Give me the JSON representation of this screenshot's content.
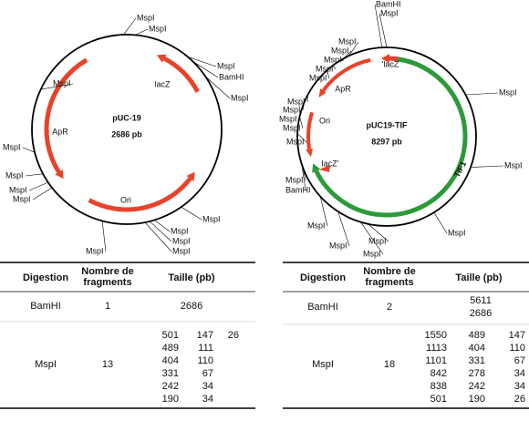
{
  "plasmids": [
    {
      "name": "pUC-19",
      "size": "2686 pb",
      "features": [
        "lacZ",
        "ApR",
        "Ori"
      ],
      "sites": [
        "MspI",
        "MspI",
        "MspI",
        "BamHI",
        "MspI",
        "MspI",
        "MspI",
        "MspI",
        "MspI",
        "MspI",
        "MspI",
        "MspI",
        "MspI",
        "MspI",
        "MspI"
      ]
    },
    {
      "name": "pUC19-TIF",
      "size": "8297 pb",
      "features": [
        "'lacZ",
        "ApR",
        "Ori",
        "lacZ'",
        "TIF1"
      ],
      "sites": [
        "BamHI",
        "MspI",
        "MspI",
        "MspI",
        "MspI",
        "MspI",
        "MspI",
        "MspI",
        "MspI",
        "MspI",
        "MspI",
        "MspI",
        "MspI",
        "MspI",
        "MspI",
        "MspI",
        "MspI",
        "MspI",
        "MspI",
        "MspI",
        "BamHI"
      ]
    }
  ],
  "tables": [
    {
      "header": [
        "Digestion",
        "Nombre de fragments",
        "Taille (pb)"
      ],
      "rows": [
        {
          "enzyme": "BamHI",
          "count": "1",
          "sizes": [
            [
              "2686"
            ]
          ]
        },
        {
          "enzyme": "MspI",
          "count": "13",
          "sizes": [
            [
              "501",
              "147",
              "26"
            ],
            [
              "489",
              "111"
            ],
            [
              "404",
              "110"
            ],
            [
              "331",
              "67"
            ],
            [
              "242",
              "34"
            ],
            [
              "190",
              "34"
            ]
          ]
        }
      ]
    },
    {
      "header": [
        "Digestion",
        "Nombre de fragments",
        "Taille (pb)"
      ],
      "rows": [
        {
          "enzyme": "BamHI",
          "count": "2",
          "sizes": [
            [
              "5611"
            ],
            [
              "2686"
            ]
          ]
        },
        {
          "enzyme": "MspI",
          "count": "18",
          "sizes": [
            [
              "1550",
              "489",
              "147"
            ],
            [
              "1113",
              "404",
              "110"
            ],
            [
              "1101",
              "331",
              "67"
            ],
            [
              "842",
              "278",
              "34"
            ],
            [
              "838",
              "242",
              "34"
            ],
            [
              "501",
              "190",
              "26"
            ]
          ]
        }
      ]
    }
  ]
}
